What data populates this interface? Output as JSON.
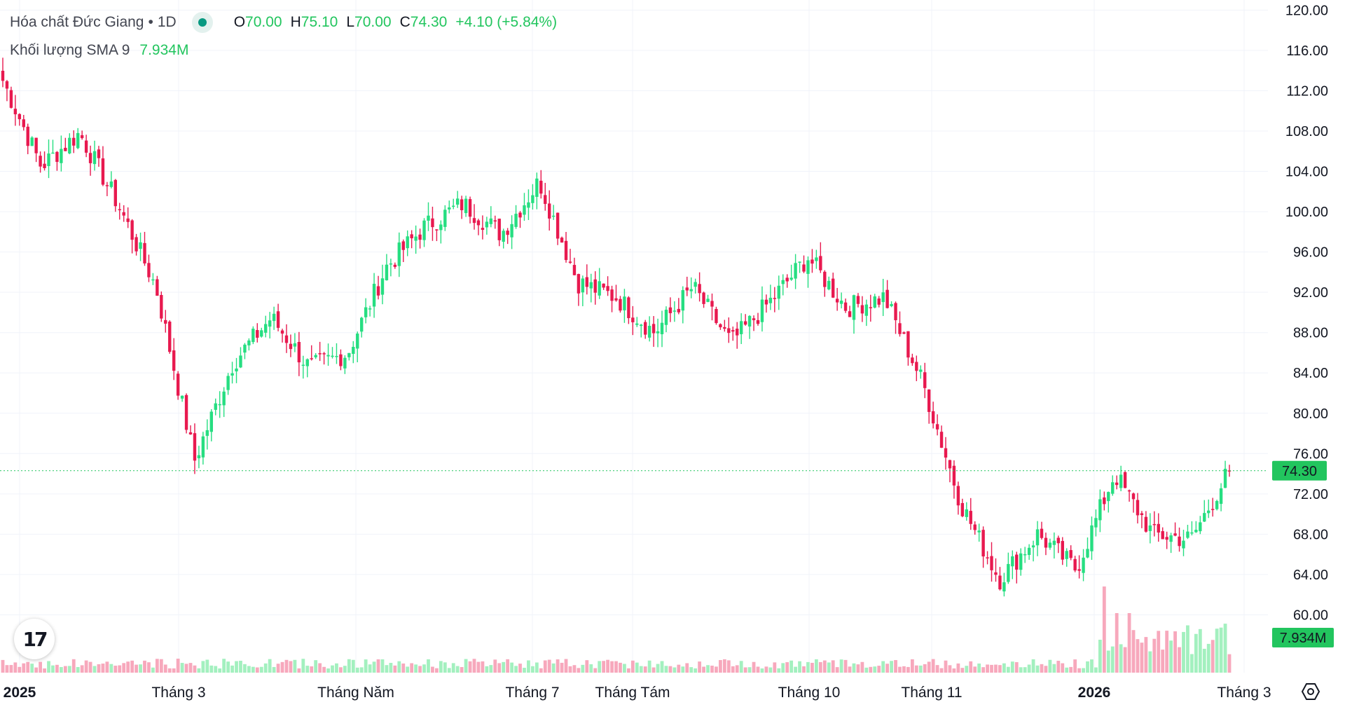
{
  "legend": {
    "symbol": "Hóa chất Đức Giang",
    "separator": "•",
    "interval": "1D",
    "open_label": "O",
    "open": "70.00",
    "high_label": "H",
    "high": "75.10",
    "low_label": "L",
    "low": "70.00",
    "close_label": "C",
    "close": "74.30",
    "change": "+4.10 (+5.84%)",
    "volume_label": "Khối lượng SMA 9",
    "volume_value": "7.934M"
  },
  "colors": {
    "up": "#26de81",
    "down": "#e8194f",
    "up_volume": "#a3f0bf",
    "down_volume": "#f7a8bc",
    "grid": "#f0f3fa",
    "last_price_line": "#22c55e"
  },
  "last_price_tag": "74.30",
  "volume_tag": "7.934M",
  "chart_data": {
    "type": "candlestick",
    "title": "Hóa chất Đức Giang",
    "interval": "1D",
    "ylim": [
      56,
      121
    ],
    "y_ticks": [
      "60.00",
      "64.00",
      "68.00",
      "72.00",
      "76.00",
      "80.00",
      "84.00",
      "88.00",
      "92.00",
      "96.00",
      "100.00",
      "104.00",
      "108.00",
      "112.00",
      "116.00",
      "120.00"
    ],
    "x_ticks": [
      "2025",
      "Tháng 3",
      "Tháng Năm",
      "Tháng 7",
      "Tháng Tám",
      "Tháng 10",
      "Tháng 11",
      "2026",
      "Tháng 3"
    ],
    "last_price": 74.3,
    "grid": true,
    "ohlc_anchor_points": [
      {
        "period": "2025",
        "close": 113.0
      },
      {
        "period": "Tháng 2",
        "close": 104.5
      },
      {
        "period": "Tháng 3",
        "close": 107.8
      },
      {
        "period": "Tháng 3",
        "close": 100.8
      },
      {
        "period": "Tháng 4",
        "close": 92.5
      },
      {
        "period": "Tháng 4",
        "close": 75.3
      },
      {
        "period": "Tháng Năm",
        "close": 85.0
      },
      {
        "period": "Tháng Năm",
        "close": 89.5
      },
      {
        "period": "Tháng 6",
        "close": 84.5
      },
      {
        "period": "Tháng 6",
        "close": 86.0
      },
      {
        "period": "Tháng 7",
        "close": 94.5
      },
      {
        "period": "Tháng 7",
        "close": 98.5
      },
      {
        "period": "Tháng Tám",
        "close": 100.8
      },
      {
        "period": "Tháng Tám",
        "close": 97.8
      },
      {
        "period": "Tháng 9",
        "close": 103.0
      },
      {
        "period": "Tháng 9",
        "close": 93.0
      },
      {
        "period": "Tháng 10",
        "close": 91.5
      },
      {
        "period": "Tháng 10",
        "close": 88.0
      },
      {
        "period": "Tháng 10",
        "close": 92.5
      },
      {
        "period": "Tháng 11",
        "close": 87.0
      },
      {
        "period": "Tháng 11",
        "close": 91.0
      },
      {
        "period": "Tháng 11",
        "close": 95.5
      },
      {
        "period": "Tháng 12",
        "close": 90.5
      },
      {
        "period": "Tháng 12",
        "close": 91.5
      },
      {
        "period": "Tháng 12",
        "close": 83.0
      },
      {
        "period": "Tháng 12",
        "close": 71.0
      },
      {
        "period": "2026",
        "close": 63.5
      },
      {
        "period": "2026",
        "close": 68.0
      },
      {
        "period": "2026",
        "close": 64.5
      },
      {
        "period": "Tháng 2",
        "close": 74.0
      },
      {
        "period": "Tháng 2",
        "close": 68.0
      },
      {
        "period": "Tháng 3",
        "close": 67.5
      },
      {
        "period": "Tháng 3",
        "close": 74.3
      }
    ]
  }
}
